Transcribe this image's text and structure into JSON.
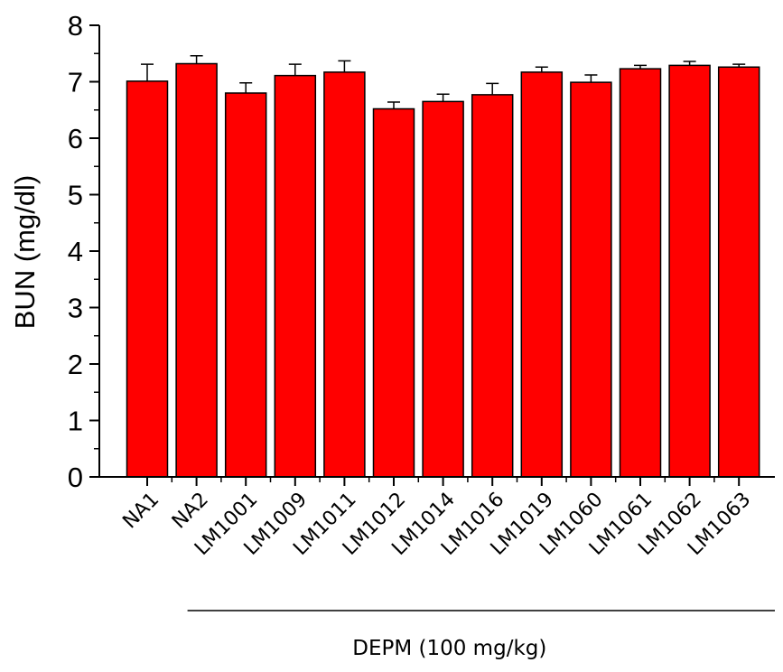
{
  "chart_data": {
    "type": "bar",
    "ylabel": "BUN (mg/dl)",
    "xlabel": "",
    "ylim": [
      0,
      8
    ],
    "yticks": [
      0,
      1,
      2,
      3,
      4,
      5,
      6,
      7,
      8
    ],
    "categories": [
      "NA1",
      "NA2",
      "LM1001",
      "LM1009",
      "LM1011",
      "LM1012",
      "LM1014",
      "LM1016",
      "LM1019",
      "LM1060",
      "LM1061",
      "LM1062",
      "LM1063"
    ],
    "values": [
      7.01,
      7.32,
      6.8,
      7.11,
      7.17,
      6.52,
      6.65,
      6.77,
      7.17,
      6.99,
      7.23,
      7.29,
      7.26
    ],
    "errors": [
      0.3,
      0.14,
      0.18,
      0.2,
      0.2,
      0.12,
      0.13,
      0.2,
      0.09,
      0.13,
      0.06,
      0.07,
      0.05
    ],
    "bar_color": "#ff0000",
    "group_label": "DEPM (100 mg/kg)",
    "group_start_category": "NA2",
    "grid": false
  }
}
